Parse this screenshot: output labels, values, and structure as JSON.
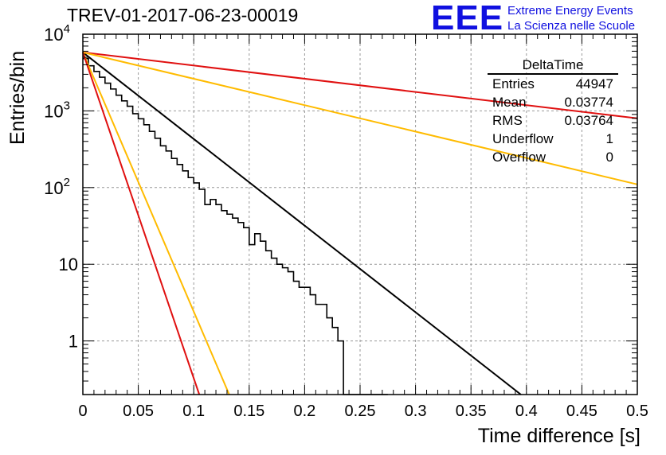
{
  "header": {
    "title": "TREV-01-2017-06-23-00019",
    "logo_mark": "EEE",
    "logo_line1": "Extreme Energy Events",
    "logo_line2": "La Scienza nelle Scuole"
  },
  "stats_box": {
    "title": "DeltaTime",
    "rows": [
      {
        "label": "Entries",
        "value": "44947"
      },
      {
        "label": "Mean",
        "value": "0.03774"
      },
      {
        "label": "RMS",
        "value": "0.03764"
      },
      {
        "label": "Underflow",
        "value": "1"
      },
      {
        "label": "Overflow",
        "value": "0"
      }
    ]
  },
  "chart_data": {
    "type": "line",
    "title": "TREV-01-2017-06-23-00019",
    "xlabel": "Time difference [s]",
    "ylabel": "Entries/bin",
    "xlim": [
      0,
      0.5
    ],
    "ylim": [
      0.2,
      10000
    ],
    "y_scale": "log",
    "grid": true,
    "x_ticks": [
      "0",
      "0.05",
      "0.1",
      "0.15",
      "0.2",
      "0.25",
      "0.3",
      "0.35",
      "0.4",
      "0.45",
      "0.5"
    ],
    "y_ticks": [
      {
        "value": 1,
        "label": "1"
      },
      {
        "value": 10,
        "label": "10"
      },
      {
        "value": 100,
        "label": "10",
        "sup": "2"
      },
      {
        "value": 1000,
        "label": "10",
        "sup": "3"
      },
      {
        "value": 10000,
        "label": "10",
        "sup": "4"
      }
    ],
    "histogram": {
      "name": "DeltaTime",
      "color": "#000000",
      "bin_width": 0.005,
      "bin_start": 0,
      "counts": [
        4800,
        3880,
        3270,
        2750,
        2300,
        1930,
        1600,
        1350,
        1150,
        920,
        790,
        660,
        540,
        440,
        350,
        300,
        240,
        200,
        165,
        135,
        115,
        95,
        60,
        70,
        60,
        50,
        45,
        40,
        35,
        30,
        18,
        25,
        20,
        15,
        12,
        10,
        9,
        8,
        6,
        5,
        5,
        4,
        3,
        3,
        2,
        1.5,
        1,
        0,
        0,
        0,
        0,
        0,
        0,
        0,
        0
      ]
    },
    "fits": [
      {
        "color": "#000000",
        "x": [
          0,
          0.395
        ],
        "y": [
          5800,
          0.2
        ]
      },
      {
        "color": "#e01010",
        "x": [
          0,
          0.5
        ],
        "y": [
          5800,
          800
        ]
      },
      {
        "color": "#ffbb00",
        "x": [
          0,
          0.5
        ],
        "y": [
          5800,
          110
        ]
      },
      {
        "color": "#ffbb00",
        "x": [
          0,
          0.132
        ],
        "y": [
          5800,
          0.2
        ]
      },
      {
        "color": "#e01010",
        "x": [
          0,
          0.105
        ],
        "y": [
          5800,
          0.2
        ]
      }
    ]
  }
}
